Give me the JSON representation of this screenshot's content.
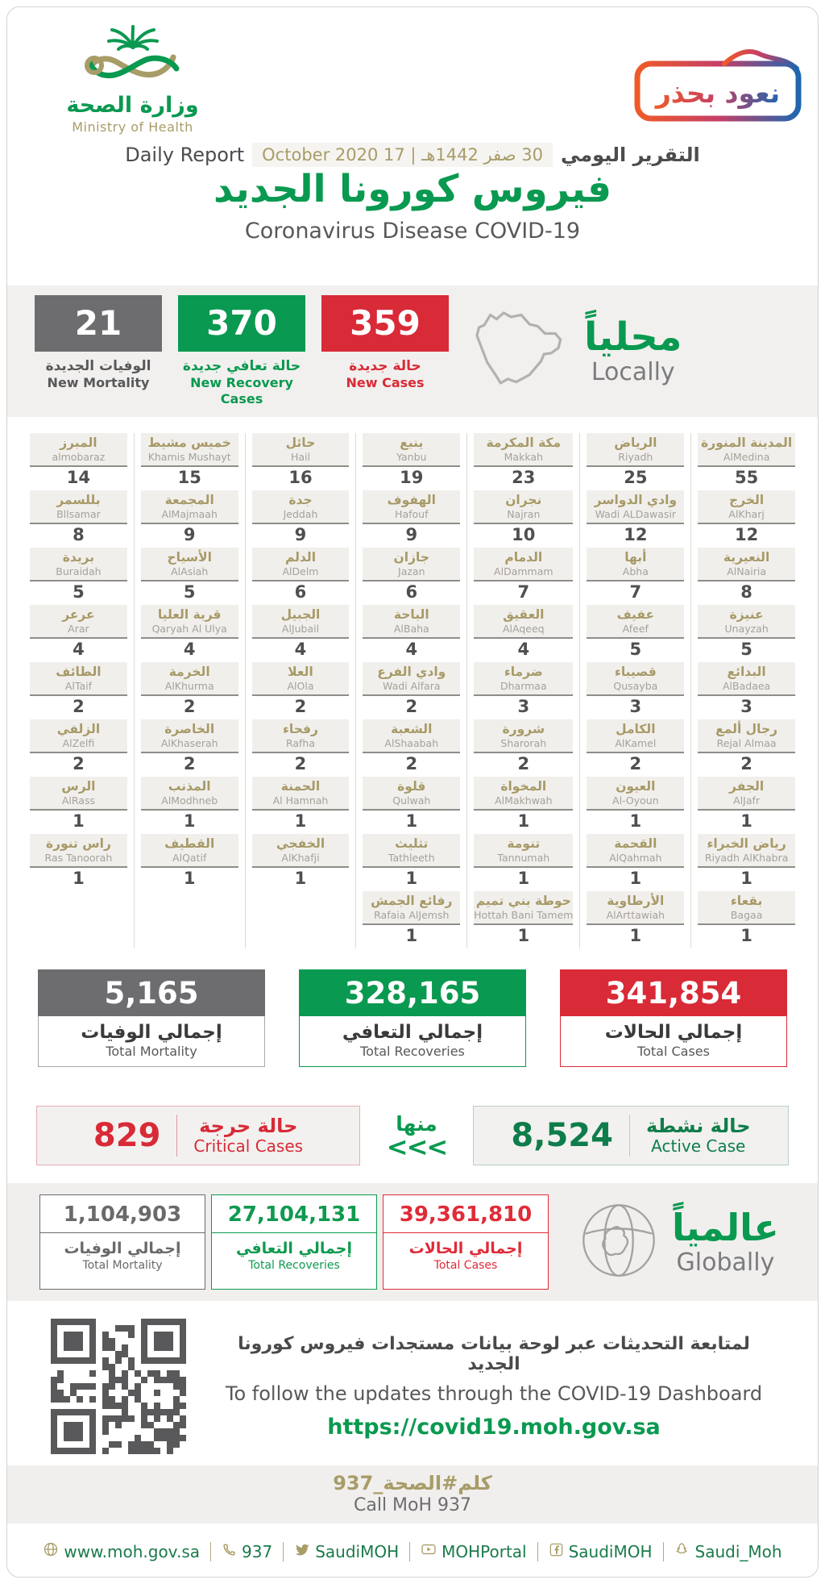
{
  "colors": {
    "green": "#0a9950",
    "red": "#d92a37",
    "gray": "#6d6d70",
    "tan": "#a89c68",
    "dark": "#414042",
    "label_gray": "#58585a",
    "global_gray": "#6a6a6d",
    "global_red": "#e02b38"
  },
  "header": {
    "logo_ar": "وزارة الصحة",
    "logo_en": "Ministry of Health",
    "badge_text": "نعود بحذر",
    "report_en": "Daily Report",
    "date_text": "30 صفر 1442هـ | 17 October 2020",
    "report_ar": "التقرير اليومي",
    "title_ar": "فيروس كورونا الجديد",
    "subtitle_en": "Coronavirus Disease COVID-19"
  },
  "local": {
    "heading_ar": "محلياً",
    "heading_en": "Locally",
    "stats": [
      {
        "key": "new-mortality",
        "value": "21",
        "label_ar": "الوفيات الجديدة",
        "label_en": "New Mortality",
        "color": "gray",
        "label_color": "#58585a"
      },
      {
        "key": "new-recovery-cases",
        "value": "370",
        "label_ar": "حالة تعافي جديدة",
        "label_en": "New Recovery Cases",
        "color": "green",
        "label_color": "#0a9950"
      },
      {
        "key": "new-cases",
        "value": "359",
        "label_ar": "حالة جديدة",
        "label_en": "New Cases",
        "color": "red",
        "label_color": "#d92a37"
      }
    ]
  },
  "cities": {
    "note": "columns ordered right-to-left as displayed",
    "columns": [
      [
        {
          "ar": "المدينة المنورة",
          "en": "AlMedina",
          "n": "55"
        },
        {
          "ar": "الخرج",
          "en": "AlKharj",
          "n": "12"
        },
        {
          "ar": "النعيرية",
          "en": "AlNairia",
          "n": "8"
        },
        {
          "ar": "عنيزة",
          "en": "Unayzah",
          "n": "5"
        },
        {
          "ar": "البدائع",
          "en": "AlBadaea",
          "n": "3"
        },
        {
          "ar": "رجال ألمع",
          "en": "Rejal Almaa",
          "n": "2"
        },
        {
          "ar": "الجفر",
          "en": "AlJafr",
          "n": "1"
        },
        {
          "ar": "رياض الخبراء",
          "en": "Riyadh AlKhabra",
          "n": "1"
        },
        {
          "ar": "بقعاء",
          "en": "Bagaa",
          "n": "1"
        }
      ],
      [
        {
          "ar": "الرياض",
          "en": "Riyadh",
          "n": "25"
        },
        {
          "ar": "وادي الدواسر",
          "en": "Wadi ALDawasir",
          "n": "12"
        },
        {
          "ar": "أبها",
          "en": "Abha",
          "n": "7"
        },
        {
          "ar": "عفيف",
          "en": "Afeef",
          "n": "5"
        },
        {
          "ar": "قصيباء",
          "en": "Qusayba",
          "n": "3"
        },
        {
          "ar": "الكامل",
          "en": "AlKamel",
          "n": "2"
        },
        {
          "ar": "العيون",
          "en": "Al-Oyoun",
          "n": "1"
        },
        {
          "ar": "القحمة",
          "en": "AlQahmah",
          "n": "1"
        },
        {
          "ar": "الأرطاوية",
          "en": "AlArttawiah",
          "n": "1"
        }
      ],
      [
        {
          "ar": "مكة المكرمة",
          "en": "Makkah",
          "n": "23"
        },
        {
          "ar": "نجران",
          "en": "Najran",
          "n": "10"
        },
        {
          "ar": "الدمام",
          "en": "AlDammam",
          "n": "7"
        },
        {
          "ar": "العقيق",
          "en": "AlAqeeq",
          "n": "4"
        },
        {
          "ar": "ضرماء",
          "en": "Dharmaa",
          "n": "3"
        },
        {
          "ar": "شرورة",
          "en": "Sharorah",
          "n": "2"
        },
        {
          "ar": "المخواة",
          "en": "AlMakhwah",
          "n": "1"
        },
        {
          "ar": "تنومة",
          "en": "Tannumah",
          "n": "1"
        },
        {
          "ar": "حوطة بني تميم",
          "en": "Hottah Bani Tamem",
          "n": "1"
        }
      ],
      [
        {
          "ar": "ينبع",
          "en": "Yanbu",
          "n": "19"
        },
        {
          "ar": "الهفوف",
          "en": "Hafouf",
          "n": "9"
        },
        {
          "ar": "جازان",
          "en": "Jazan",
          "n": "6"
        },
        {
          "ar": "الباحة",
          "en": "AlBaha",
          "n": "4"
        },
        {
          "ar": "وادي الفرع",
          "en": "Wadi Alfara",
          "n": "2"
        },
        {
          "ar": "الشعبة",
          "en": "AlShaabah",
          "n": "2"
        },
        {
          "ar": "قلوة",
          "en": "Qulwah",
          "n": "1"
        },
        {
          "ar": "تثليث",
          "en": "Tathleeth",
          "n": "1"
        },
        {
          "ar": "رفائع الجمش",
          "en": "Rafaia AlJemsh",
          "n": "1"
        }
      ],
      [
        {
          "ar": "حائل",
          "en": "Hail",
          "n": "16"
        },
        {
          "ar": "جدة",
          "en": "Jeddah",
          "n": "9"
        },
        {
          "ar": "الدلم",
          "en": "AlDelm",
          "n": "6"
        },
        {
          "ar": "الجبيل",
          "en": "AlJubail",
          "n": "4"
        },
        {
          "ar": "العلا",
          "en": "AlOla",
          "n": "2"
        },
        {
          "ar": "رفحاء",
          "en": "Rafha",
          "n": "2"
        },
        {
          "ar": "الحمنة",
          "en": "Al Hamnah",
          "n": "1"
        },
        {
          "ar": "الخفجي",
          "en": "AlKhafji",
          "n": "1"
        }
      ],
      [
        {
          "ar": "خميس مشيط",
          "en": "Khamis Mushayt",
          "n": "15"
        },
        {
          "ar": "المجمعة",
          "en": "AlMajmaah",
          "n": "9"
        },
        {
          "ar": "الأسياح",
          "en": "AlAsiah",
          "n": "5"
        },
        {
          "ar": "قرية العليا",
          "en": "Qaryah Al Ulya",
          "n": "4"
        },
        {
          "ar": "الخرمة",
          "en": "AlKhurma",
          "n": "2"
        },
        {
          "ar": "الخاصرة",
          "en": "AlKhaserah",
          "n": "2"
        },
        {
          "ar": "المذنب",
          "en": "AlModhneb",
          "n": "1"
        },
        {
          "ar": "القطيف",
          "en": "AlQatif",
          "n": "1"
        }
      ],
      [
        {
          "ar": "المبرز",
          "en": "almobaraz",
          "n": "14"
        },
        {
          "ar": "بللسمر",
          "en": "Bllsamar",
          "n": "8"
        },
        {
          "ar": "بريدة",
          "en": "Buraidah",
          "n": "5"
        },
        {
          "ar": "عرعر",
          "en": "Arar",
          "n": "4"
        },
        {
          "ar": "الطائف",
          "en": "AlTaif",
          "n": "2"
        },
        {
          "ar": "الزلفي",
          "en": "AlZelfi",
          "n": "2"
        },
        {
          "ar": "الرس",
          "en": "AlRass",
          "n": "1"
        },
        {
          "ar": "راس تنورة",
          "en": "Ras Tanoorah",
          "n": "1"
        }
      ]
    ]
  },
  "totals": [
    {
      "key": "total-mortality",
      "value": "5,165",
      "label_ar": "إجمالي الوفيات",
      "label_en": "Total Mortality",
      "color": "gray",
      "border": "#a9a8a6"
    },
    {
      "key": "total-recoveries",
      "value": "328,165",
      "label_ar": "إجمالي التعافي",
      "label_en": "Total Recoveries",
      "color": "green",
      "border": "#0a9950"
    },
    {
      "key": "total-cases",
      "value": "341,854",
      "label_ar": "إجمالي الحالات",
      "label_en": "Total Cases",
      "color": "red",
      "border": "#d92a37"
    }
  ],
  "subset": {
    "minha_ar": "منها",
    "arrows": "<<<",
    "critical": {
      "value": "829",
      "label_ar": "حالة حرجة",
      "label_en": "Critical Cases"
    },
    "active": {
      "value": "8,524",
      "label_ar": "حالة نشطة",
      "label_en": "Active Case"
    }
  },
  "global": {
    "heading_ar": "عالمياً",
    "heading_en": "Globally",
    "stats": [
      {
        "key": "global-total-mortality",
        "value": "1,104,903",
        "label_ar": "إجمالي الوفيات",
        "label_en": "Total Mortality",
        "theme": "#6a6a6d"
      },
      {
        "key": "global-total-recoveries",
        "value": "27,104,131",
        "label_ar": "إجمالي التعافي",
        "label_en": "Total Recoveries",
        "theme": "#0f9a4f"
      },
      {
        "key": "global-total-cases",
        "value": "39,361,810",
        "label_ar": "إجمالي الحالات",
        "label_en": "Total Cases",
        "theme": "#e02b38"
      }
    ]
  },
  "dashboard": {
    "line_ar": "لمتابعة التحديثات عبر لوحة بيانات مستجدات فيروس كورونا الجديد",
    "line_en": "To follow the updates through the COVID-19 Dashboard",
    "url": "https://covid19.moh.gov.sa"
  },
  "call": {
    "ar": "كلم#الصحة_937",
    "en": "Call MoH 937"
  },
  "footer_links": [
    {
      "icon": "globe-icon",
      "text": "www.moh.gov.sa"
    },
    {
      "icon": "phone-icon",
      "text": "937"
    },
    {
      "icon": "twitter-icon",
      "text": "SaudiMOH"
    },
    {
      "icon": "youtube-icon",
      "text": "MOHPortal"
    },
    {
      "icon": "facebook-icon",
      "text": "SaudiMOH"
    },
    {
      "icon": "snapchat-icon",
      "text": "Saudi_Moh"
    }
  ]
}
